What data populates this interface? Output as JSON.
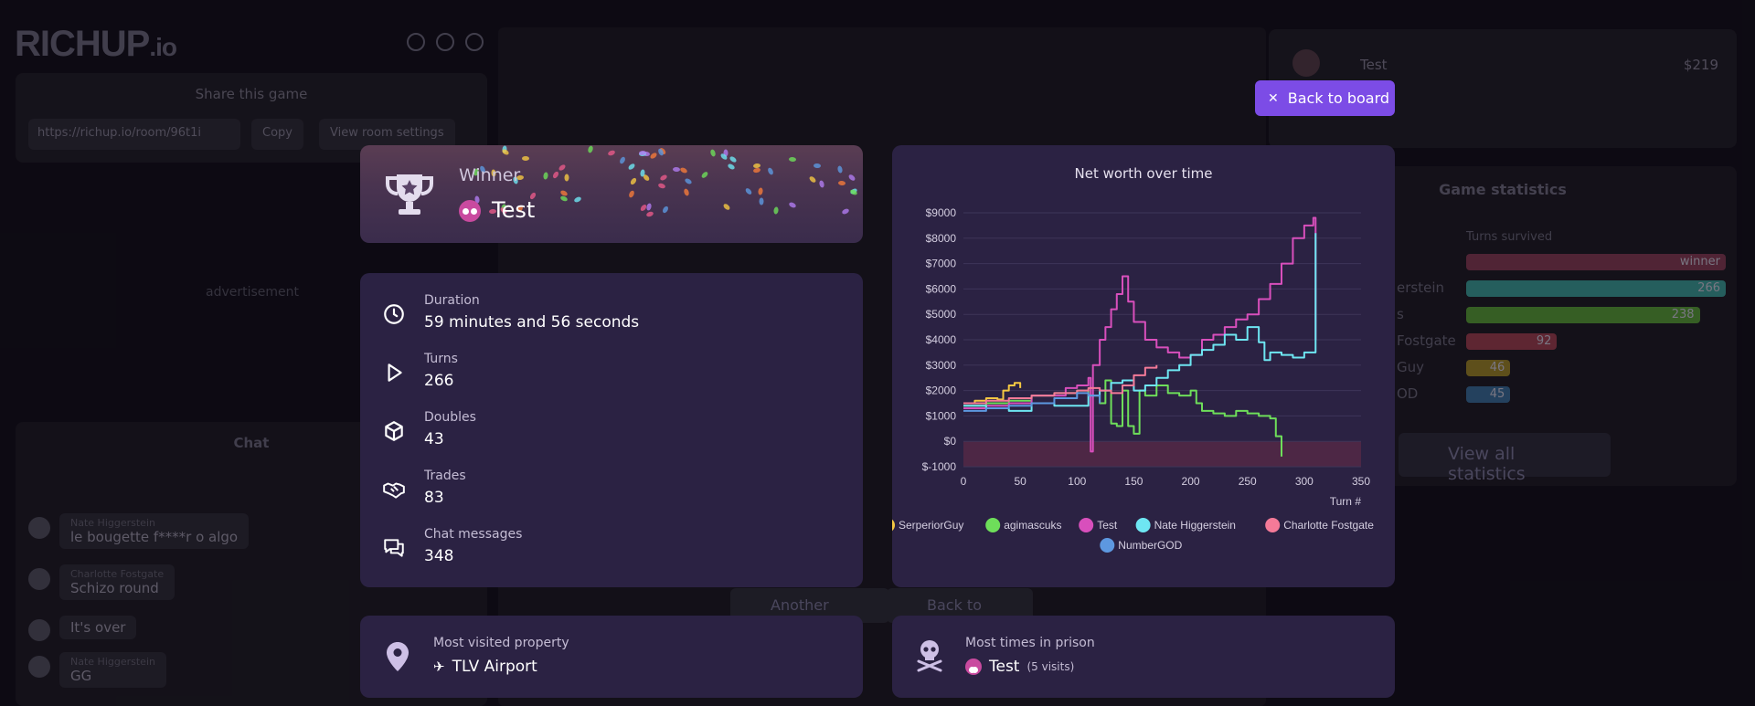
{
  "background": {
    "logo": "RICHUP",
    "logo_suffix": ".io",
    "share_title": "Share this game",
    "share_url": "https://richup.io/room/96t1i",
    "copy_label": "Copy",
    "room_settings_label": "View room settings",
    "advertisement": "advertisement",
    "chat_title": "Chat",
    "chat_messages": [
      {
        "name": "Nate Higgerstein",
        "text": "le bougette f****r o algo"
      },
      {
        "name": "Charlotte Fostgate",
        "text": "Schizo round"
      },
      {
        "name": "",
        "text": "It's over"
      },
      {
        "name": "Nate Higgerstein",
        "text": "GG"
      }
    ],
    "player_name": "Test",
    "player_money": "$219",
    "game_stats_title": "Game statistics",
    "turns_survived_label": "Turns survived",
    "stats_rows": [
      {
        "label": "",
        "value": "winner",
        "color": "#5c2a3d",
        "fraction": 1.0
      },
      {
        "label": "erstein",
        "value": "266",
        "color": "#2b6b6a",
        "fraction": 1.0
      },
      {
        "label": "s",
        "value": "238",
        "color": "#3e6b2a",
        "fraction": 0.9
      },
      {
        "label": "Fostgate",
        "value": "92",
        "color": "#6b2c3a",
        "fraction": 0.35
      },
      {
        "label": "Guy",
        "value": "46",
        "color": "#6b5a1f",
        "fraction": 0.17
      },
      {
        "label": "OD",
        "value": "45",
        "color": "#2a4b6b",
        "fraction": 0.17
      }
    ],
    "view_all_stats": "View all statistics",
    "another_game": "Another game",
    "back_to_lobby": "Back to lobby"
  },
  "winner": {
    "label": "Winner",
    "name": "Test"
  },
  "stats": [
    {
      "label": "Duration",
      "value": "59 minutes and 56 seconds",
      "icon": "clock-icon"
    },
    {
      "label": "Turns",
      "value": "266",
      "icon": "play-icon"
    },
    {
      "label": "Doubles",
      "value": "43",
      "icon": "cube-icon"
    },
    {
      "label": "Trades",
      "value": "83",
      "icon": "handshake-icon"
    },
    {
      "label": "Chat messages",
      "value": "348",
      "icon": "chat-icon"
    }
  ],
  "most_visited": {
    "label": "Most visited property",
    "value": "TLV Airport"
  },
  "most_prison": {
    "label": "Most times in prison",
    "value": "Test",
    "note": "(5 visits)"
  },
  "back_to_board": "Back to board",
  "chart_data": {
    "type": "line",
    "title": "Net worth over time",
    "xlabel": "Turn #",
    "ylabel": "",
    "xlim": [
      0,
      350
    ],
    "ylim": [
      -1000,
      9000
    ],
    "x_ticks": [
      "0",
      "50",
      "100",
      "150",
      "200",
      "250",
      "300",
      "350"
    ],
    "y_ticks": [
      "$-1000",
      "$0",
      "$1000",
      "$2000",
      "$3000",
      "$4000",
      "$5000",
      "$6000",
      "$7000",
      "$8000",
      "$9000"
    ],
    "negative_band_color": "#5a2a45",
    "series": [
      {
        "name": "SerperiorGuy",
        "color": "#f5c842",
        "points": [
          [
            0,
            1500
          ],
          [
            10,
            1600
          ],
          [
            20,
            1700
          ],
          [
            30,
            1650
          ],
          [
            35,
            2000
          ],
          [
            40,
            2200
          ],
          [
            45,
            2300
          ],
          [
            50,
            2100
          ]
        ]
      },
      {
        "name": "agimascuks",
        "color": "#6ede5a",
        "points": [
          [
            0,
            1400
          ],
          [
            20,
            1500
          ],
          [
            40,
            1600
          ],
          [
            60,
            1800
          ],
          [
            80,
            1900
          ],
          [
            100,
            2000
          ],
          [
            110,
            1800
          ],
          [
            120,
            1500
          ],
          [
            125,
            2400
          ],
          [
            130,
            700
          ],
          [
            135,
            600
          ],
          [
            140,
            2000
          ],
          [
            145,
            600
          ],
          [
            150,
            300
          ],
          [
            155,
            2000
          ],
          [
            160,
            1800
          ],
          [
            170,
            2200
          ],
          [
            180,
            1900
          ],
          [
            190,
            1800
          ],
          [
            200,
            2000
          ],
          [
            205,
            1500
          ],
          [
            210,
            1200
          ],
          [
            220,
            1100
          ],
          [
            230,
            1000
          ],
          [
            240,
            1200
          ],
          [
            250,
            1100
          ],
          [
            260,
            1000
          ],
          [
            270,
            900
          ],
          [
            275,
            200
          ],
          [
            280,
            -600
          ]
        ]
      },
      {
        "name": "Test",
        "color": "#d84fbc",
        "points": [
          [
            0,
            1300
          ],
          [
            20,
            1400
          ],
          [
            40,
            1500
          ],
          [
            60,
            1800
          ],
          [
            80,
            1800
          ],
          [
            90,
            2100
          ],
          [
            100,
            2200
          ],
          [
            110,
            2500
          ],
          [
            112,
            -400
          ],
          [
            114,
            3000
          ],
          [
            120,
            4000
          ],
          [
            125,
            4500
          ],
          [
            130,
            5200
          ],
          [
            135,
            5800
          ],
          [
            140,
            6500
          ],
          [
            145,
            5500
          ],
          [
            150,
            4700
          ],
          [
            160,
            4000
          ],
          [
            170,
            3700
          ],
          [
            180,
            3500
          ],
          [
            190,
            3300
          ],
          [
            200,
            3400
          ],
          [
            210,
            4000
          ],
          [
            220,
            4200
          ],
          [
            230,
            4500
          ],
          [
            240,
            4800
          ],
          [
            250,
            5000
          ],
          [
            260,
            5600
          ],
          [
            270,
            6200
          ],
          [
            280,
            7000
          ],
          [
            290,
            8000
          ],
          [
            300,
            8500
          ],
          [
            308,
            8800
          ],
          [
            310,
            4000
          ]
        ]
      },
      {
        "name": "Nate Higgerstein",
        "color": "#6ee6f2",
        "points": [
          [
            0,
            1400
          ],
          [
            20,
            1300
          ],
          [
            40,
            1200
          ],
          [
            60,
            1500
          ],
          [
            80,
            1400
          ],
          [
            100,
            1400
          ],
          [
            110,
            1800
          ],
          [
            120,
            2000
          ],
          [
            130,
            2300
          ],
          [
            140,
            2400
          ],
          [
            150,
            2000
          ],
          [
            160,
            2200
          ],
          [
            170,
            2500
          ],
          [
            180,
            2800
          ],
          [
            190,
            3000
          ],
          [
            200,
            3400
          ],
          [
            210,
            3600
          ],
          [
            220,
            3800
          ],
          [
            230,
            4200
          ],
          [
            240,
            4000
          ],
          [
            250,
            4500
          ],
          [
            260,
            3900
          ],
          [
            265,
            3200
          ],
          [
            270,
            3500
          ],
          [
            280,
            3400
          ],
          [
            290,
            3300
          ],
          [
            300,
            3500
          ],
          [
            310,
            8200
          ]
        ]
      },
      {
        "name": "Charlotte Fostgate",
        "color": "#f47a98",
        "points": [
          [
            0,
            1500
          ],
          [
            20,
            1600
          ],
          [
            40,
            1700
          ],
          [
            60,
            1800
          ],
          [
            80,
            1900
          ],
          [
            100,
            2000
          ],
          [
            110,
            2100
          ],
          [
            120,
            2000
          ],
          [
            130,
            1900
          ],
          [
            140,
            2200
          ],
          [
            150,
            2600
          ],
          [
            160,
            2900
          ],
          [
            170,
            3000
          ]
        ]
      },
      {
        "name": "NumberGOD",
        "color": "#5d98e0",
        "points": [
          [
            0,
            1200
          ],
          [
            20,
            1300
          ],
          [
            40,
            1400
          ],
          [
            60,
            1500
          ],
          [
            80,
            1700
          ],
          [
            100,
            1900
          ],
          [
            110,
            1800
          ],
          [
            120,
            1500
          ]
        ]
      }
    ]
  }
}
